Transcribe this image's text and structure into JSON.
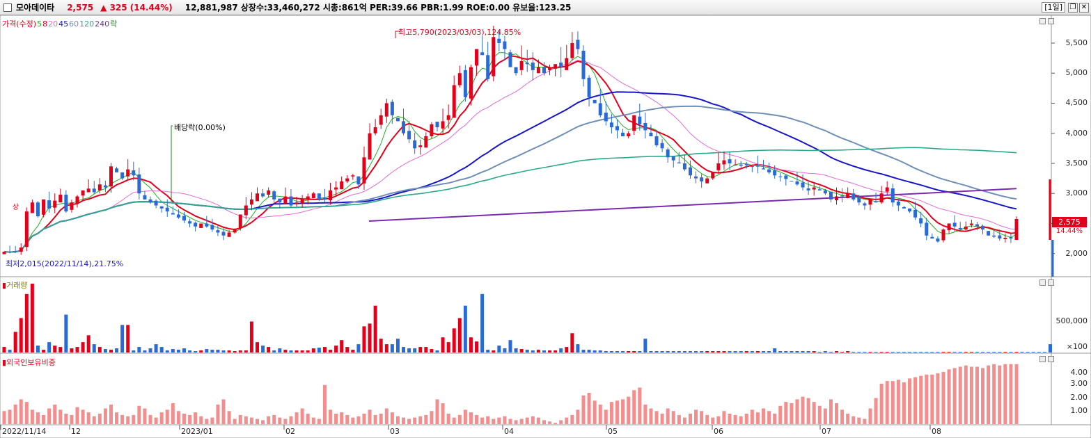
{
  "header": {
    "stock_name": "모아데이타",
    "price": "2,575",
    "change": "▲ 325 (14.44%)",
    "stats": "12,881,987  상장수:33,460,272  시총:861억  PER:39.66  PBR:1.99  ROE:0.00  유보율:123.25",
    "period": "[1일]",
    "colors": {
      "up": "#e2001a",
      "down": "#2a6ad5"
    }
  },
  "legend": [
    {
      "text": "가격(수정)",
      "color": "#e2001a"
    },
    {
      "text": "5",
      "color": "#1db11d"
    },
    {
      "text": "8",
      "color": "#e2001a"
    },
    {
      "text": "20",
      "color": "#e46ad6"
    },
    {
      "text": "45",
      "color": "#1616c8"
    },
    {
      "text": "60",
      "color": "#6f8fb6"
    },
    {
      "text": "120",
      "color": "#2aa88a"
    },
    {
      "text": "240",
      "color": "#7a2ab0"
    },
    {
      "text": "락",
      "color": "#1a8a1a"
    }
  ],
  "annotations": {
    "high": "최고5,790(2023/03/03),124.85%",
    "low": "최저2,015(2022/11/14),21.75%",
    "dividend": "배당락(0.00%)",
    "up_marker": "상"
  },
  "price_axis": [
    "5,500",
    "5,000",
    "4,500",
    "4,000",
    "3,500",
    "3,000",
    "2,500",
    "2,000"
  ],
  "current_price_label": "2,575",
  "current_pct_label": "14.44%",
  "volume_panel": {
    "title": "거래량",
    "axis": [
      "500,000",
      "×100"
    ]
  },
  "foreign_panel": {
    "title": "외국인보유비중",
    "axis": [
      "4.00",
      "3.00",
      "2.00",
      "1.00"
    ]
  },
  "x_axis": [
    "2022/11/14",
    "12",
    "2023/01",
    "02",
    "03",
    "04",
    "05",
    "06",
    "07",
    "08"
  ],
  "chart_data": {
    "type": "candlestick",
    "ylim": [
      1650,
      5800
    ],
    "high_point": {
      "date": "2023/03/03",
      "value": 5790
    },
    "low_point": {
      "date": "2022/11/14",
      "value": 2015
    },
    "close_series": [
      2030,
      2020,
      2040,
      2100,
      2700,
      2850,
      2620,
      2900,
      2750,
      2880,
      2980,
      2700,
      2850,
      2950,
      3050,
      3080,
      3020,
      3150,
      3100,
      3450,
      3350,
      3250,
      3400,
      3300,
      3000,
      2900,
      2850,
      2800,
      2750,
      2700,
      2650,
      2600,
      2550,
      2500,
      2450,
      2500,
      2450,
      2400,
      2350,
      2300,
      2350,
      2400,
      2650,
      2800,
      2900,
      3000,
      2950,
      3050,
      2900,
      2850,
      2950,
      2800,
      2850,
      2900,
      2950,
      3000,
      2900,
      2900,
      3050,
      3100,
      3200,
      3250,
      3300,
      3150,
      3600,
      4000,
      4100,
      4300,
      4500,
      4300,
      4200,
      4000,
      3900,
      3750,
      3800,
      3950,
      4150,
      4100,
      4200,
      4300,
      4800,
      5000,
      4600,
      5100,
      5400,
      5300,
      4900,
      5600,
      5500,
      5400,
      5100,
      5000,
      5200,
      5150,
      5050,
      5100,
      5000,
      5100,
      5150,
      5100,
      5250,
      5500,
      5400,
      4900,
      4600,
      4500,
      4300,
      4200,
      4100,
      4050,
      3950,
      4000,
      4300,
      4150,
      4050,
      3950,
      3800,
      3750,
      3600,
      3550,
      3500,
      3400,
      3300,
      3250,
      3200,
      3250,
      3350,
      3500,
      3550,
      3500,
      3480,
      3460,
      3470,
      3440,
      3450,
      3400,
      3350,
      3300,
      3280,
      3240,
      3200,
      3150,
      3100,
      3050,
      3100,
      3050,
      3000,
      2900,
      2950,
      2950,
      3000,
      2900,
      2850,
      2800,
      2900,
      2850,
      3000,
      3100,
      2850,
      2800,
      2750,
      2700,
      2600,
      2500,
      2300,
      2250,
      2200,
      2400,
      2500,
      2450,
      2400,
      2450,
      2500,
      2450,
      2400,
      2300,
      2280,
      2250,
      2260,
      2250,
      2575
    ],
    "volume": [
      8,
      4,
      30,
      50,
      85,
      100,
      10,
      4,
      15,
      10,
      8,
      55,
      6,
      8,
      15,
      25,
      12,
      8,
      5,
      4,
      6,
      40,
      40,
      3,
      8,
      3,
      6,
      12,
      8,
      3,
      5,
      4,
      6,
      3,
      2,
      3,
      5,
      4,
      4,
      3,
      3,
      2,
      3,
      3,
      45,
      15,
      10,
      8,
      3,
      6,
      4,
      3,
      3,
      3,
      3,
      6,
      7,
      8,
      4,
      10,
      18,
      8,
      4,
      12,
      38,
      42,
      68,
      20,
      12,
      12,
      20,
      8,
      6,
      6,
      8,
      8,
      5,
      3,
      22,
      15,
      35,
      50,
      68,
      22,
      16,
      85,
      4,
      3,
      10,
      6,
      18,
      6,
      5,
      4,
      3,
      4,
      3,
      3,
      3,
      6,
      8,
      28,
      12,
      4,
      4,
      3,
      3,
      2,
      2,
      2,
      2,
      2,
      2,
      2,
      20,
      2,
      2,
      2,
      2,
      2,
      2,
      2,
      2,
      2,
      2,
      2,
      2,
      2,
      2,
      2,
      2,
      2,
      2,
      2,
      2,
      2,
      2,
      6,
      2,
      2,
      2,
      2,
      2,
      2,
      2,
      1,
      2,
      1,
      2,
      1,
      2,
      1,
      1,
      1,
      1,
      1,
      1,
      1,
      1,
      1,
      1,
      1,
      1,
      1,
      1,
      1,
      1,
      1,
      1,
      1,
      1,
      1,
      1,
      1,
      1,
      1,
      1,
      1,
      1,
      1,
      1,
      1,
      1,
      1,
      1,
      1,
      12
    ],
    "volume_colors_up": "#e2001a",
    "foreign_ratio": [
      1.0,
      1.1,
      1.5,
      1.9,
      1.7,
      1.1,
      0.9,
      0.7,
      1.2,
      1.5,
      1.1,
      0.8,
      0.7,
      1.3,
      1.1,
      0.9,
      0.6,
      0.8,
      1.2,
      1.5,
      0.9,
      0.7,
      0.6,
      0.7,
      1.4,
      1.2,
      0.7,
      0.5,
      0.9,
      1.1,
      1.6,
      1.0,
      0.8,
      0.7,
      0.9,
      0.6,
      0.4,
      0.5,
      1.5,
      1.9,
      1.0,
      0.4,
      0.7,
      0.6,
      0.5,
      0.4,
      0.3,
      0.6,
      0.7,
      0.5,
      0.4,
      0.6,
      0.9,
      1.2,
      0.8,
      0.5,
      0.4,
      3.0,
      1.1,
      0.8,
      0.9,
      0.7,
      0.5,
      0.6,
      0.8,
      1.1,
      0.7,
      0.8,
      1.2,
      0.9,
      0.6,
      0.5,
      0.4,
      0.5,
      0.6,
      0.7,
      1.0,
      1.9,
      1.6,
      0.8,
      0.5,
      0.7,
      1.1,
      0.9,
      0.7,
      0.5,
      0.6,
      0.4,
      0.5,
      0.6,
      0.4,
      0.3,
      0.4,
      0.5,
      0.6,
      0.5,
      0.3,
      0.2,
      0.1,
      0.3,
      0.5,
      0.7,
      1.1,
      2.2,
      2.4,
      1.8,
      1.5,
      1.1,
      1.7,
      1.8,
      1.9,
      2.1,
      2.6,
      2.8,
      1.5,
      1.2,
      1.0,
      0.8,
      1.2,
      1.0,
      0.7,
      0.5,
      0.8,
      1.1,
      1.0,
      0.7,
      0.5,
      0.6,
      1.0,
      0.8,
      0.7,
      0.6,
      0.8,
      1.1,
      0.9,
      1.2,
      1.0,
      0.8,
      1.4,
      1.7,
      1.6,
      1.9,
      2.1,
      2.0,
      1.7,
      1.4,
      1.2,
      1.9,
      1.6,
      1.1,
      0.8,
      0.6,
      0.5,
      0.4,
      1.2,
      2.0,
      3.1,
      3.3,
      3.3,
      3.4,
      3.2,
      3.5,
      3.6,
      3.7,
      3.8,
      3.8,
      3.9,
      4.0,
      4.2,
      4.3,
      4.4,
      4.5,
      4.4,
      4.4,
      4.3,
      4.5,
      4.6,
      4.5,
      4.6,
      4.6,
      4.6
    ]
  }
}
